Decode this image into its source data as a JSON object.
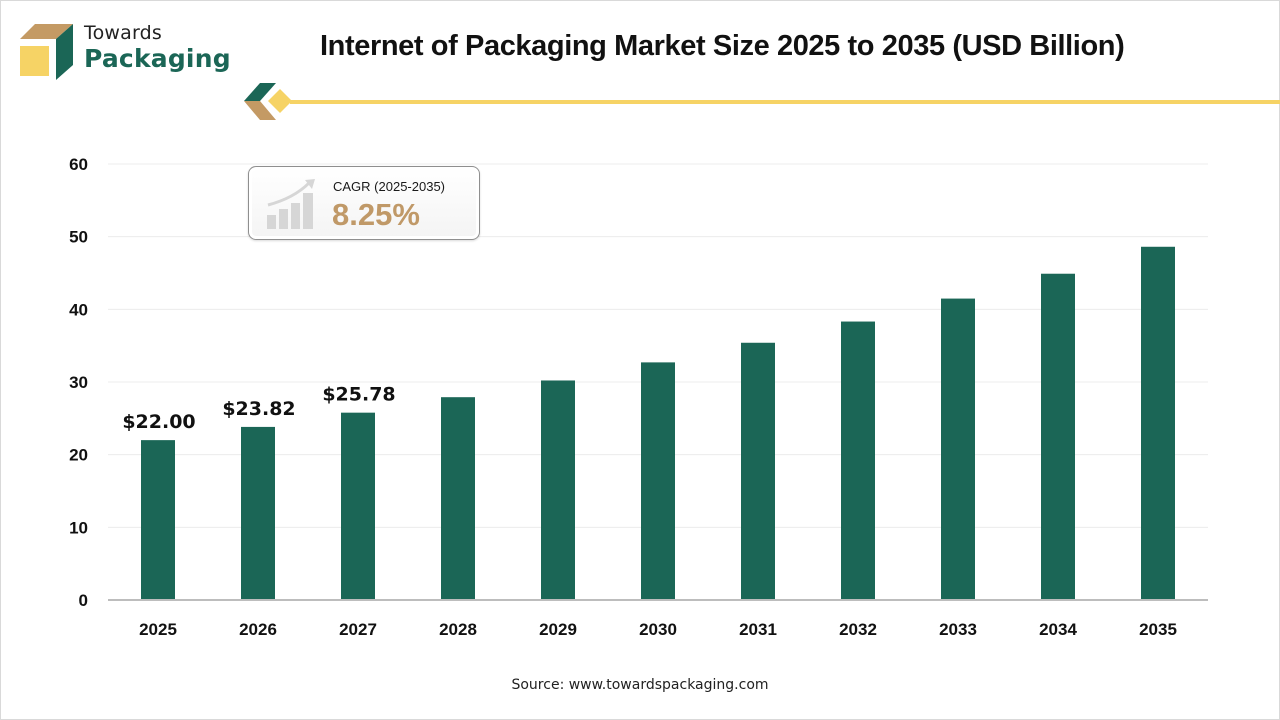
{
  "brand": {
    "name_top": "Towards",
    "name_bottom": "Packaging",
    "colors": {
      "green": "#1b6656",
      "gold": "#f6d365",
      "tan": "#c49a64"
    }
  },
  "header": {
    "title": "Internet of Packaging Market Size 2025 to 2035 (USD Billion)"
  },
  "cagr_box": {
    "label": "CAGR (2025-2035)",
    "value": "8.25%",
    "icon": "growth-chart-icon"
  },
  "footer": {
    "source": "Source: www.towardspackaging.com"
  },
  "chart_data": {
    "type": "bar",
    "title": "Internet of Packaging Market Size 2025 to 2035 (USD Billion)",
    "xlabel": "",
    "ylabel": "",
    "categories": [
      "2025",
      "2026",
      "2027",
      "2028",
      "2029",
      "2030",
      "2031",
      "2032",
      "2033",
      "2034",
      "2035"
    ],
    "values": [
      22.0,
      23.82,
      25.78,
      27.91,
      30.21,
      32.7,
      35.4,
      38.32,
      41.48,
      44.9,
      48.61
    ],
    "data_labels": [
      "$22.00",
      "$23.82",
      "$25.78",
      null,
      null,
      null,
      null,
      null,
      null,
      null,
      null
    ],
    "ylim": [
      0,
      60
    ],
    "yticks": [
      0,
      10,
      20,
      30,
      40,
      50,
      60
    ],
    "grid": true,
    "legend": "none",
    "bar_color": "#1b6656",
    "unit": "USD Billion"
  }
}
